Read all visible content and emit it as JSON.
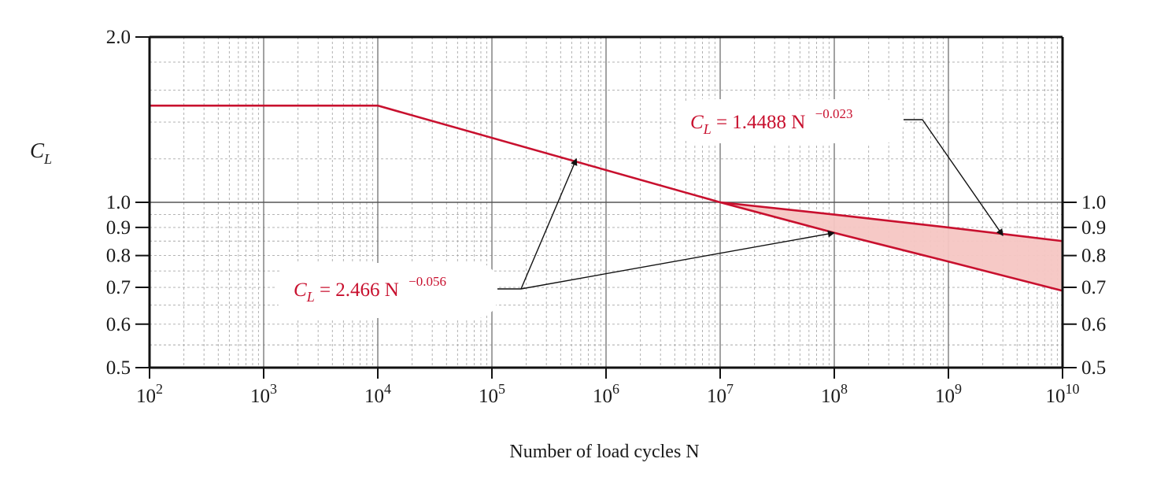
{
  "chart_data": {
    "type": "line",
    "xscale": "log",
    "yscale": "log",
    "xlim": [
      100,
      10000000000
    ],
    "ylim": [
      0.5,
      2.0
    ],
    "xlabel": "Number of load cycles N",
    "ylabel": "C_L",
    "x_ticks": [
      {
        "value": 100,
        "base": "10",
        "exp": "2"
      },
      {
        "value": 1000,
        "base": "10",
        "exp": "3"
      },
      {
        "value": 10000,
        "base": "10",
        "exp": "4"
      },
      {
        "value": 100000,
        "base": "10",
        "exp": "5"
      },
      {
        "value": 1000000,
        "base": "10",
        "exp": "6"
      },
      {
        "value": 10000000,
        "base": "10",
        "exp": "7"
      },
      {
        "value": 100000000,
        "base": "10",
        "exp": "8"
      },
      {
        "value": 1000000000,
        "base": "10",
        "exp": "9"
      },
      {
        "value": 10000000000,
        "base": "10",
        "exp": "10"
      }
    ],
    "y_ticks_left": [
      {
        "value": 2.0,
        "label": "2.0"
      },
      {
        "value": 1.0,
        "label": "1.0"
      },
      {
        "value": 0.9,
        "label": "0.9"
      },
      {
        "value": 0.8,
        "label": "0.8"
      },
      {
        "value": 0.7,
        "label": "0.7"
      },
      {
        "value": 0.6,
        "label": "0.6"
      },
      {
        "value": 0.5,
        "label": "0.5"
      }
    ],
    "y_ticks_right": [
      {
        "value": 1.0,
        "label": "1.0"
      },
      {
        "value": 0.9,
        "label": "0.9"
      },
      {
        "value": 0.8,
        "label": "0.8"
      },
      {
        "value": 0.7,
        "label": "0.7"
      },
      {
        "value": 0.6,
        "label": "0.6"
      },
      {
        "value": 0.5,
        "label": "0.5"
      }
    ],
    "series": [
      {
        "x": [
          100,
          10000,
          10000000,
          100000000,
          1000000000,
          10000000000
        ],
        "y": [
          1.5,
          1.5,
          1.0,
          0.88,
          0.78,
          0.69
        ]
      },
      {
        "x": [
          10000000,
          100000000,
          1000000000,
          10000000000
        ],
        "y": [
          1.0,
          0.95,
          0.9,
          0.85
        ]
      }
    ],
    "shaded_region": {
      "x_from": 10000000,
      "x_to": 10000000000,
      "between_series": [
        0,
        1
      ]
    },
    "annotations": [
      {
        "text_main": "C",
        "text_sub": "L",
        "text_eq": " = 1.4488 N ",
        "text_exp": "−0.023",
        "points_to": [
          {
            "x": 3000000000,
            "y": 0.87
          }
        ]
      },
      {
        "text_main": "C",
        "text_sub": "L",
        "text_eq": " = 2.466 N ",
        "text_exp": "−0.056",
        "points_to": [
          {
            "x": 550000,
            "y": 1.2
          },
          {
            "x": 100000000,
            "y": 0.88
          }
        ]
      }
    ],
    "grid": true,
    "line_color": "#c8102e",
    "fill_color": "#f6c6c3"
  }
}
